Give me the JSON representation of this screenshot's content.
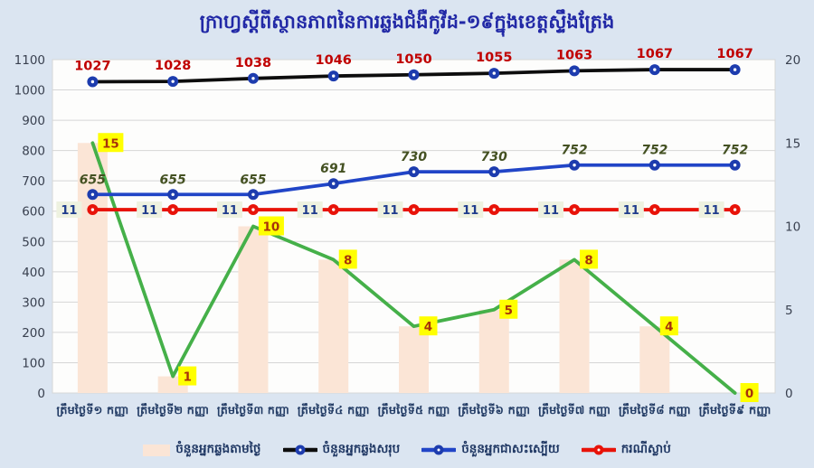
{
  "page": {
    "title": "ក្រាហ្វស្តីពីស្ថានភាពនៃការឆ្លងជំងឺកូវីដ-១៩ក្នុងខេត្តស្ទឹងត្រែង"
  },
  "colors": {
    "background": "#dbe5f1",
    "plot_background": "#fdfdfc",
    "gridline": "#d6d6d6",
    "title_text": "#2128a6",
    "axis_tick_text": "#39404f",
    "x_label_text": "#243d66",
    "legend_text": "#203864",
    "bar_fill": "#fbe5d6",
    "total_line": "#0d0d0d",
    "total_label": "#c00000",
    "recovered_line": "#2145c7",
    "recovered_label": "#445122",
    "marker_blue": "#1d3cae",
    "death_line": "#e81309",
    "death_label_text": "#1f3c8c",
    "death_label_bg": "#eef2e0",
    "daily_line": "#45b049",
    "daily_label_text": "#a8320a",
    "daily_label_bg": "#ffff00"
  },
  "chart_data": {
    "type": "combo-bar-line",
    "title": "ក្រាហ្វស្តីពីស្ថានភាពនៃការឆ្លងជំងឺកូវីដ-១៩ក្នុងខេត្តស្ទឹងត្រែង",
    "categories": [
      "ត្រឹមថ្ងៃទី១ កញ្ញា",
      "ត្រឹមថ្ងៃទី២ កញ្ញា",
      "ត្រឹមថ្ងៃទី៣ កញ្ញា",
      "ត្រឹមថ្ងៃទី៤ កញ្ញា",
      "ត្រឹមថ្ងៃទី៥ កញ្ញា",
      "ត្រឹមថ្ងៃទី៦ កញ្ញា",
      "ត្រឹមថ្ងៃទី៧ កញ្ញា",
      "ត្រឹមថ្ងៃទី៨ កញ្ញា",
      "ត្រឹមថ្ងៃទី៩ កញ្ញា"
    ],
    "left_axis": {
      "min": 0,
      "max": 1100,
      "step": 100,
      "ticks": [
        0,
        100,
        200,
        300,
        400,
        500,
        600,
        700,
        800,
        900,
        1000,
        1100
      ]
    },
    "right_axis": {
      "min": 0,
      "max": 20,
      "step": 5,
      "ticks": [
        0,
        5,
        10,
        15,
        20
      ]
    },
    "grid": "horizontal",
    "legend_position": "bottom",
    "series": [
      {
        "name": "ចំនួនអ្នកឆ្លងតាមថ្ងៃ",
        "type": "bar",
        "axis": "right",
        "color": "bar_fill",
        "label_style": "none",
        "values": [
          15,
          1,
          10,
          8,
          4,
          5,
          8,
          4,
          0
        ]
      },
      {
        "name": "ចំនួនអ្នកឆ្លងតាមថ្ងៃ",
        "type": "line",
        "axis": "right",
        "color": "daily_line",
        "marker": null,
        "label_style": "yellow-box",
        "values": [
          15,
          1,
          10,
          8,
          4,
          5,
          8,
          4,
          0
        ]
      },
      {
        "name": "ករណីស្លាប់",
        "type": "line",
        "axis": "right",
        "color": "death_line",
        "marker": "death_line",
        "label_style": "navy-box",
        "values": [
          11,
          11,
          11,
          11,
          11,
          11,
          11,
          11,
          11
        ]
      },
      {
        "name": "ចំនួនអ្នកជាសះស្បើយ",
        "type": "line",
        "axis": "left",
        "color": "recovered_line",
        "marker": "marker_blue",
        "label_style": "olive-italic",
        "values": [
          655,
          655,
          655,
          691,
          730,
          730,
          752,
          752,
          752
        ]
      },
      {
        "name": "ចំនួនអ្នកឆ្លងសរុប",
        "type": "line",
        "axis": "left",
        "color": "total_line",
        "marker": "marker_blue",
        "label_style": "red-text",
        "values": [
          1027,
          1028,
          1038,
          1046,
          1050,
          1055,
          1063,
          1067,
          1067
        ]
      }
    ],
    "legend": [
      {
        "label": "ចំនួនអ្នកឆ្លងតាមថ្ងៃ",
        "swatch": "bar",
        "color": "bar_fill"
      },
      {
        "label": "ចំនួនអ្នកឆ្លងសរុប",
        "swatch": "line-dot",
        "line": "total_line",
        "dot": "marker_blue"
      },
      {
        "label": "ចំនួនអ្នកជាសះស្បើយ",
        "swatch": "line-dot",
        "line": "recovered_line",
        "dot": "marker_blue"
      },
      {
        "label": "ករណីស្លាប់",
        "swatch": "line-dot",
        "line": "death_line",
        "dot": "death_line"
      }
    ]
  }
}
